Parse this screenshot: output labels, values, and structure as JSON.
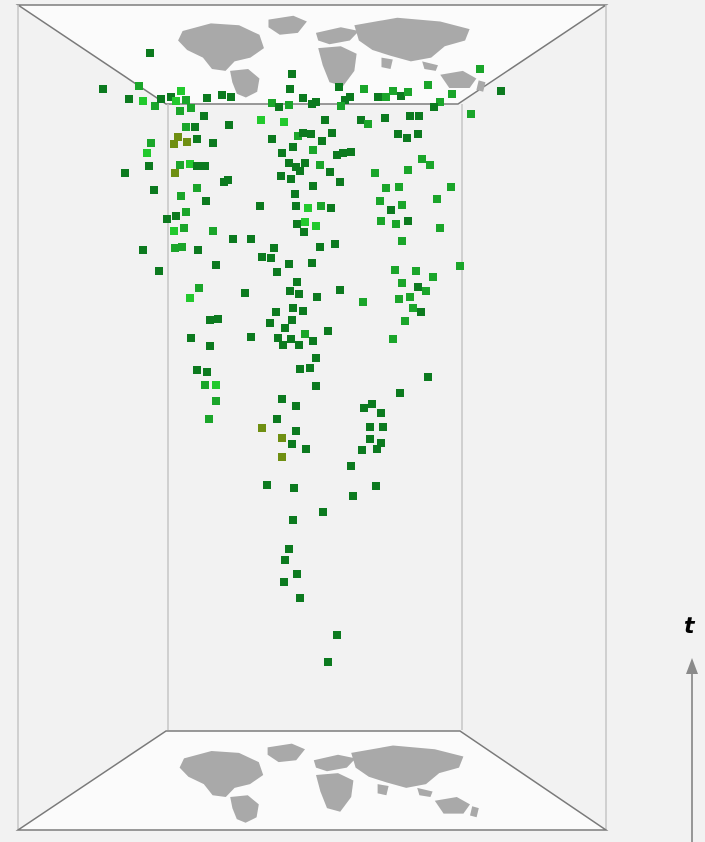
{
  "axis": {
    "label": "t"
  },
  "colors": {
    "background": "#f2f2f2",
    "frame": "#7a7a7a",
    "frame_inner": "#c4c4c4",
    "map_plane": "#fbfbfb",
    "land": "#a9a9a9",
    "dark_green": "#0c7a1f",
    "mid_green": "#1aa52a",
    "light_green": "#22c92d",
    "olive": "#6f8f12"
  },
  "map_icon": "world-map-icon",
  "arrow_icon": "up-arrow-icon"
}
